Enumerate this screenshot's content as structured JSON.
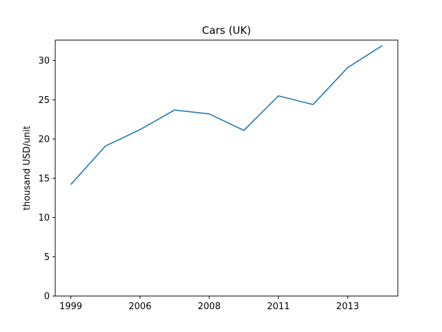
{
  "chart_data": {
    "type": "line",
    "title": "Cars (UK)",
    "xlabel": "",
    "ylabel": "thousand USD/unit",
    "x_tick_labels": [
      "1999",
      "2006",
      "2008",
      "2011",
      "2013"
    ],
    "y_ticks": [
      0,
      5,
      10,
      15,
      20,
      25,
      30
    ],
    "ylim": [
      0,
      32.6
    ],
    "grid": false,
    "series": [
      {
        "color": "#1f77b4",
        "points": [
          {
            "x": 0,
            "y": 14.2
          },
          {
            "x": 1,
            "y": 19.1
          },
          {
            "x": 2,
            "y": 21.2
          },
          {
            "x": 3,
            "y": 23.7
          },
          {
            "x": 4,
            "y": 23.2
          },
          {
            "x": 5,
            "y": 21.1
          },
          {
            "x": 6,
            "y": 25.5
          },
          {
            "x": 7,
            "y": 24.4
          },
          {
            "x": 8,
            "y": 29.1
          },
          {
            "x": 9,
            "y": 31.9
          }
        ]
      }
    ],
    "x_tick_positions": [
      0,
      2,
      4,
      6,
      8
    ],
    "xlim": [
      -0.45,
      9.45
    ]
  }
}
